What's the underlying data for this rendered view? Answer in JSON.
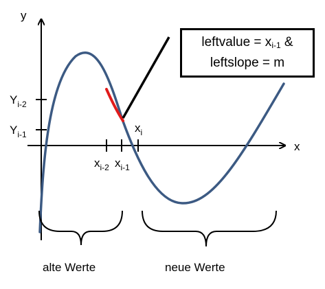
{
  "axes": {
    "y_label": "y",
    "x_label": "x"
  },
  "y_ticks": [
    {
      "base": "Y",
      "sub": "i-2"
    },
    {
      "base": "Y",
      "sub": "i-1"
    }
  ],
  "x_ticks": [
    {
      "base": "x",
      "sub": "i-2"
    },
    {
      "base": "x",
      "sub": "i-1"
    },
    {
      "base": "x",
      "sub": "i"
    }
  ],
  "callout": {
    "line1_prefix": "leftvalue = x",
    "line1_sub": "i-1",
    "line1_suffix": " &",
    "line2": "leftslope = m"
  },
  "groups": {
    "left": "alte Werte",
    "right": "neue Werte"
  },
  "colors": {
    "curve": "#3c5a83",
    "highlight": "#e01b1b",
    "axis": "#000000"
  }
}
